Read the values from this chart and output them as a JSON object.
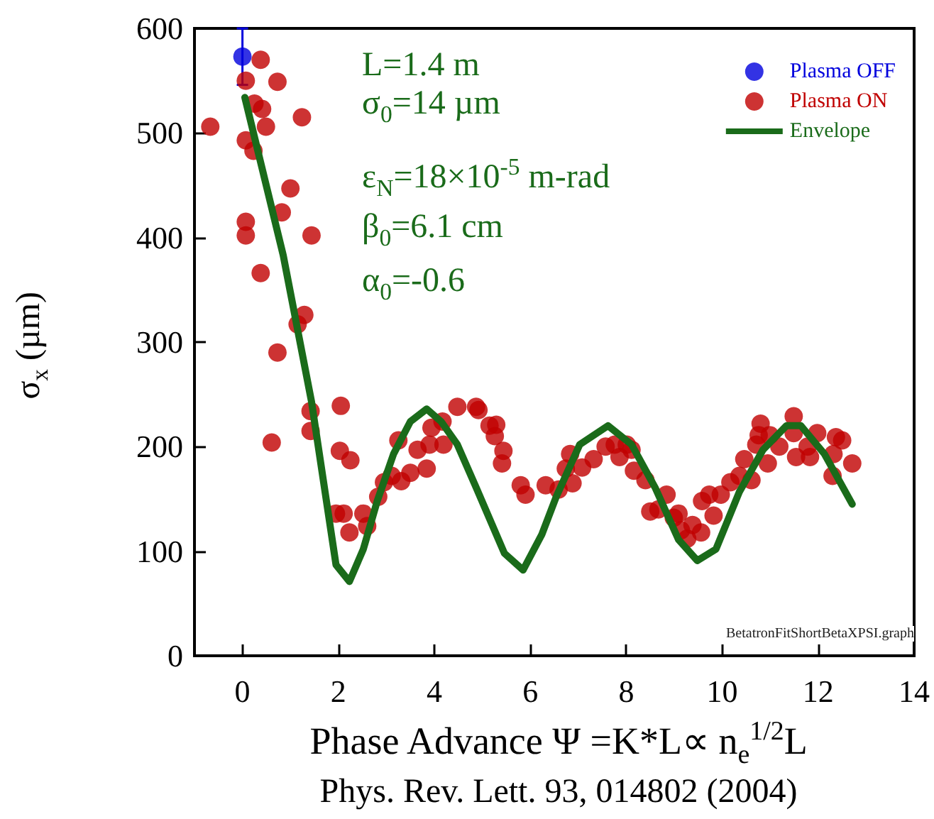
{
  "chart_data": {
    "type": "scatter",
    "xlabel": "Phase Advance Ψ =K*L∝ n$_{e}$$^{1/2}$L",
    "ylabel": "σ$_{x}$ (µm)",
    "xlim": [
      -1,
      14
    ],
    "xticks": [
      0,
      2,
      4,
      6,
      8,
      10,
      12,
      14
    ],
    "ylim": [
      0,
      600
    ],
    "yticks": [
      0,
      100,
      200,
      300,
      400,
      500,
      600
    ],
    "grid": false,
    "legend": "top right",
    "marker": "circle",
    "annotations": [
      "L=1.4 m",
      "σ$_{0}$=14 µm",
      "ε$_{N}$=18×10$^{-5}$ m-rad",
      "β$_{0}$=6.1 cm",
      "α$_{0}$=-0.6",
      "BetatronFitShortBetaXPSI.graph",
      "Phys. Rev. Lett. 93, 014802 (2004)"
    ],
    "series": [
      {
        "name": "Plasma OFF",
        "color": "#0000dd",
        "x": [
          0
        ],
        "values": [
          573
        ],
        "errors": [
          27
        ]
      },
      {
        "name": "Plasma ON",
        "color": "#c00000",
        "x": [
          -0.67,
          0.38,
          0.07,
          0.73,
          0.25,
          0.41,
          0.49,
          1.24,
          0.07,
          0.23,
          1.0,
          0.82,
          0.07,
          0.07,
          1.44,
          0.38,
          1.29,
          1.15,
          0.73,
          1.42,
          1.42,
          0.61,
          2.05,
          2.03,
          2.25,
          1.95,
          2.11,
          2.23,
          2.52,
          2.6,
          2.83,
          2.95,
          3.25,
          3.11,
          3.31,
          3.5,
          3.84,
          3.65,
          3.9,
          3.94,
          4.17,
          4.19,
          4.48,
          4.87,
          4.92,
          5.15,
          5.29,
          5.26,
          5.44,
          5.41,
          5.8,
          5.9,
          6.32,
          6.59,
          6.83,
          6.74,
          6.88,
          7.08,
          7.32,
          7.57,
          7.76,
          7.86,
          8.01,
          8.11,
          8.16,
          8.4,
          8.5,
          8.67,
          8.84,
          8.99,
          9.09,
          9.14,
          9.27,
          9.38,
          9.56,
          9.58,
          9.73,
          9.82,
          9.97,
          10.17,
          10.36,
          10.46,
          10.61,
          10.71,
          10.8,
          10.76,
          10.95,
          10.99,
          11.19,
          11.49,
          11.54,
          11.49,
          11.78,
          11.83,
          11.98,
          12.3,
          12.37,
          12.5,
          12.32,
          12.71
        ],
        "values": [
          506,
          570,
          550,
          549,
          528,
          523,
          506,
          515,
          493,
          483,
          447,
          424,
          415,
          402,
          402,
          366,
          326,
          317,
          290,
          234,
          215,
          204,
          239,
          196,
          187,
          136,
          136,
          118,
          136,
          124,
          152,
          166,
          206,
          172,
          167,
          175,
          179,
          197,
          202,
          218,
          224,
          202,
          238,
          238,
          235,
          220,
          221,
          210,
          196,
          184,
          163,
          154,
          163,
          159,
          193,
          179,
          165,
          180,
          188,
          200,
          202,
          190,
          202,
          197,
          177,
          168,
          138,
          140,
          154,
          132,
          136,
          120,
          112,
          125,
          118,
          148,
          154,
          134,
          154,
          166,
          172,
          188,
          168,
          202,
          222,
          211,
          184,
          211,
          200,
          229,
          190,
          213,
          200,
          190,
          213,
          172,
          209,
          206,
          193,
          184
        ]
      },
      {
        "name": "Envelope",
        "type": "line",
        "color": "#1a6b1a",
        "marker": "none",
        "line_style": "solid",
        "x": [
          0.05,
          0.85,
          1.44,
          1.95,
          2.23,
          2.52,
          2.81,
          3.15,
          3.5,
          3.84,
          4.14,
          4.48,
          4.87,
          5.46,
          5.85,
          6.24,
          6.54,
          7.03,
          7.62,
          8.11,
          8.6,
          9.09,
          9.48,
          9.87,
          10.36,
          10.85,
          11.34,
          11.64,
          12.13,
          12.71
        ],
        "values": [
          534,
          383,
          243,
          87,
          71,
          102,
          148,
          193,
          224,
          236,
          224,
          202,
          161,
          98,
          82,
          116,
          152,
          202,
          220,
          202,
          161,
          111,
          91,
          102,
          157,
          197,
          220,
          220,
          193,
          145
        ]
      }
    ]
  }
}
